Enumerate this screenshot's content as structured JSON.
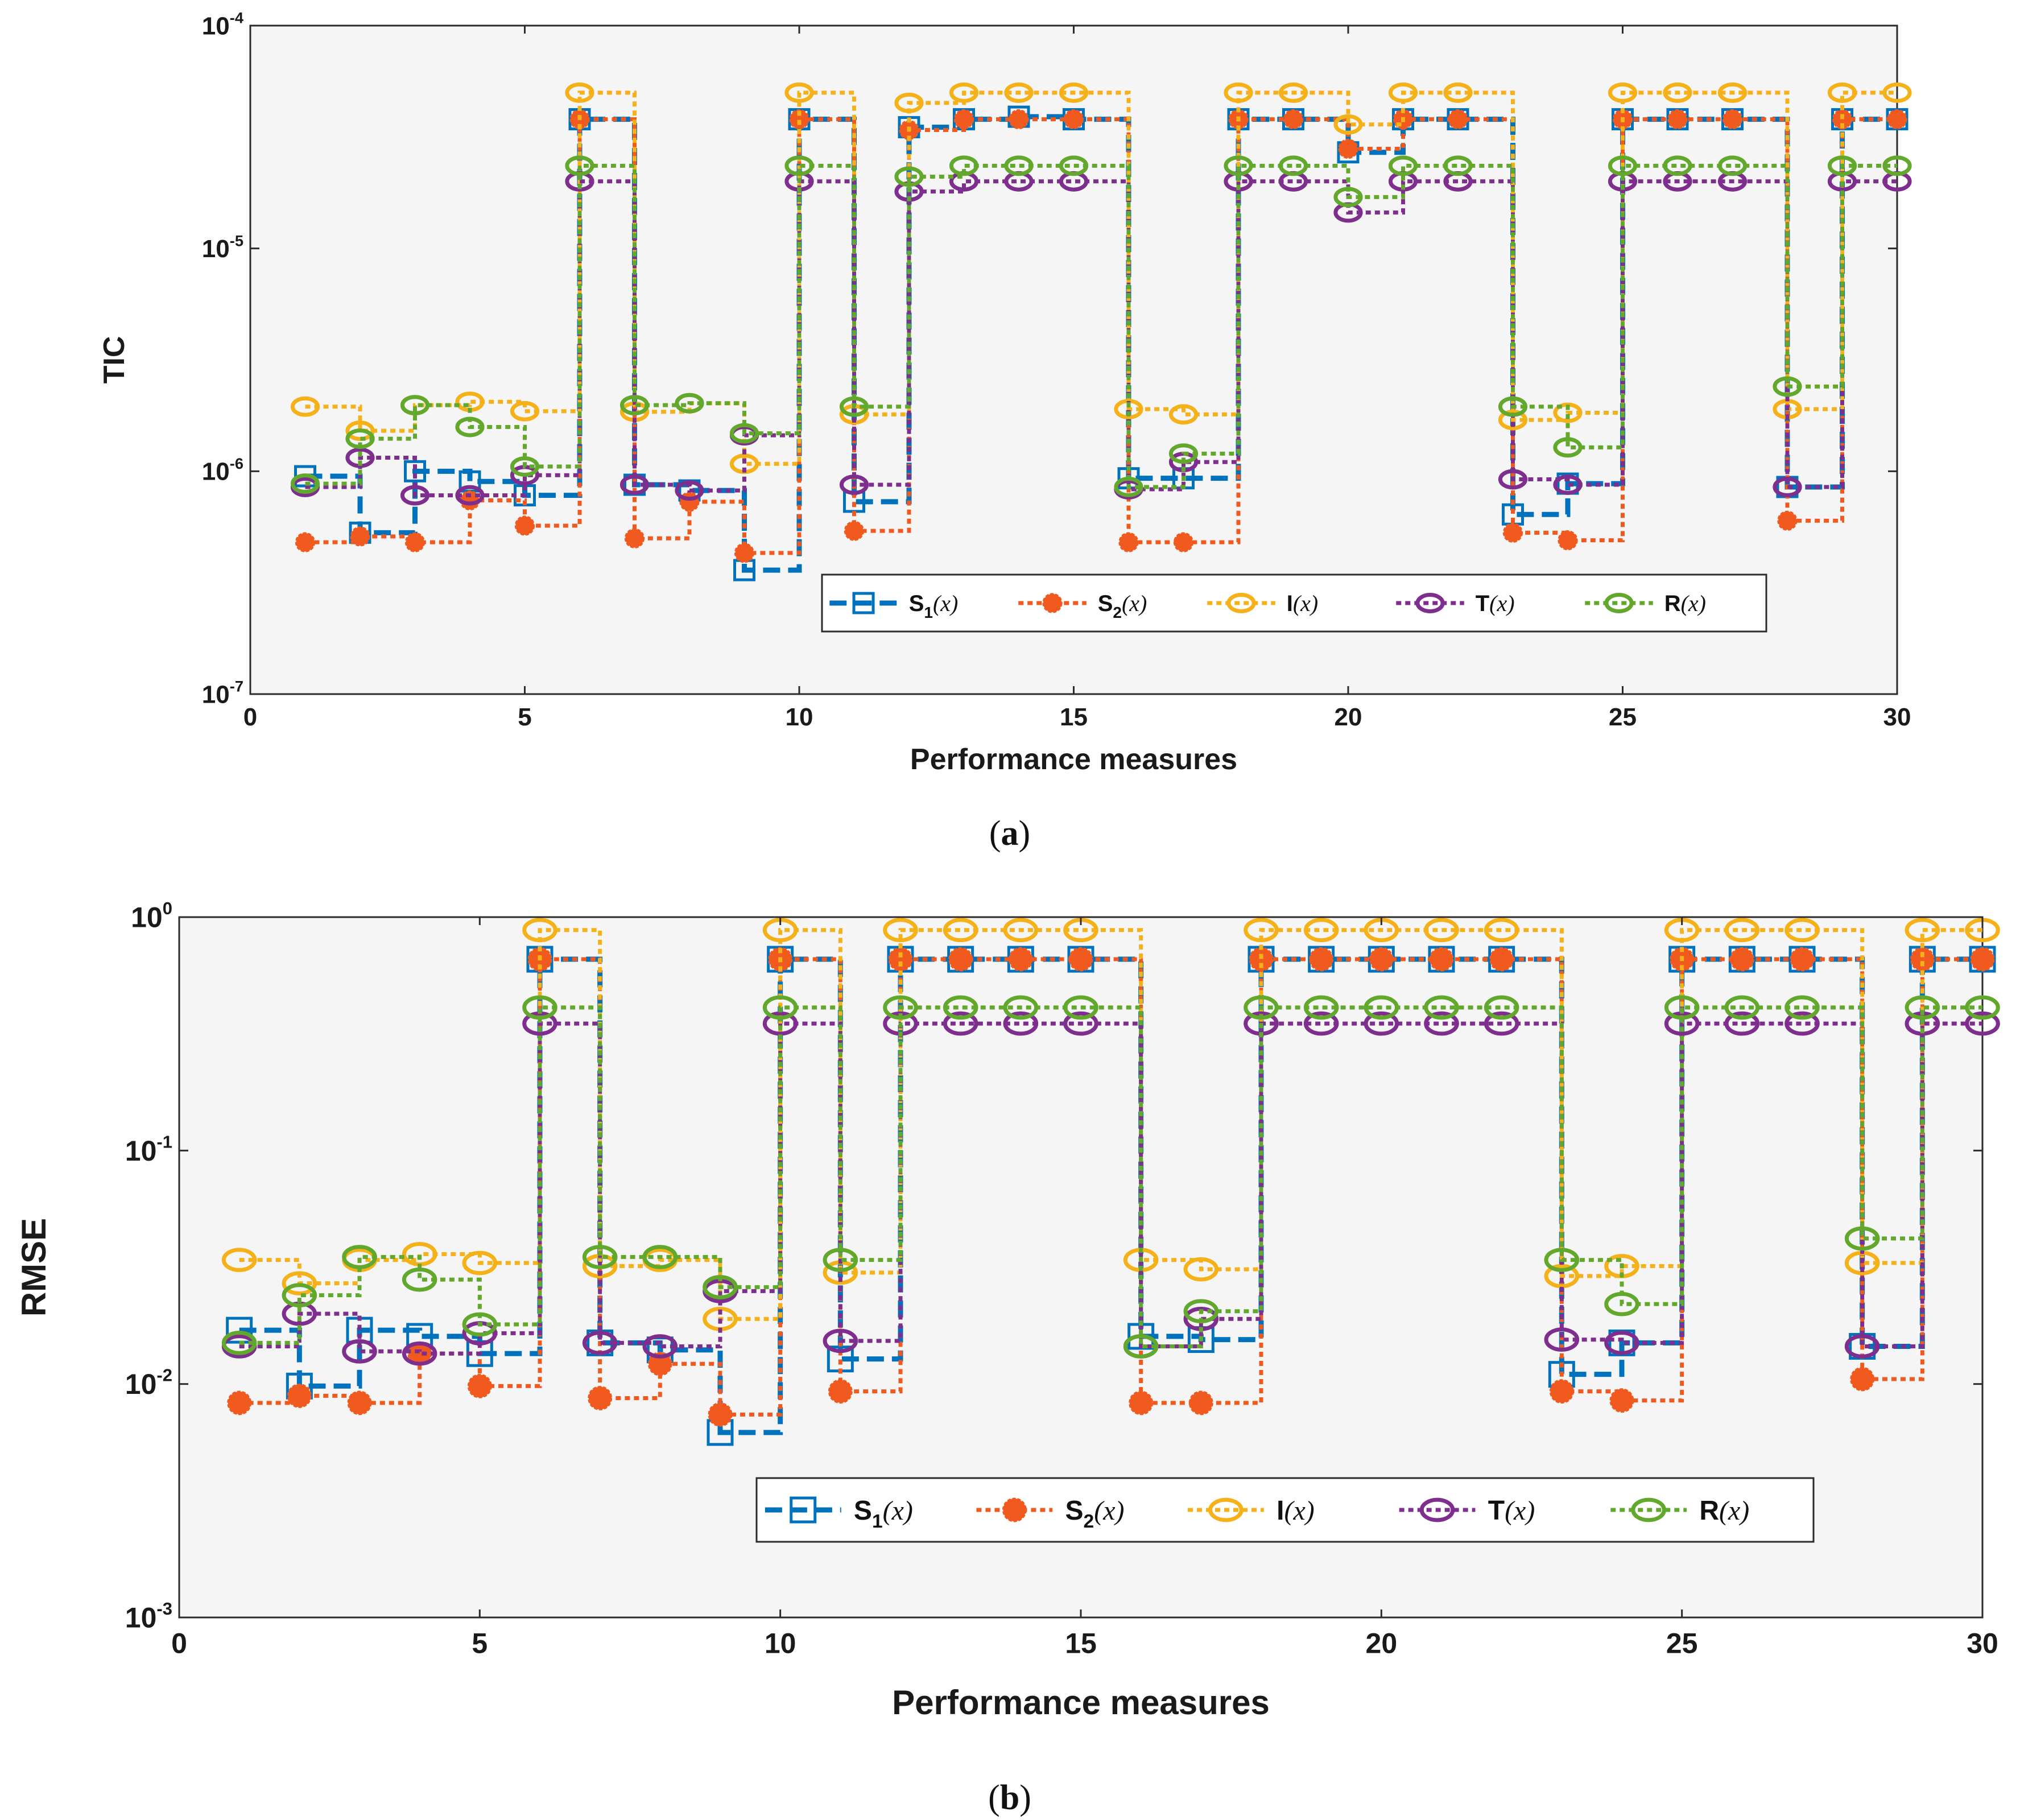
{
  "series_styles": [
    {
      "key": "S1",
      "color": "#0072BD",
      "marker": "square",
      "dash": "dash"
    },
    {
      "key": "S2",
      "color": "#F05A1E",
      "marker": "filled",
      "dash": "dot"
    },
    {
      "key": "I",
      "color": "#F5B119",
      "marker": "circle",
      "dash": "dot"
    },
    {
      "key": "T",
      "color": "#7E2F8E",
      "marker": "circle",
      "dash": "dot"
    },
    {
      "key": "R",
      "color": "#62A82C",
      "marker": "circle",
      "dash": "dot"
    }
  ],
  "chart_data": [
    {
      "type": "line",
      "panel": "a",
      "caption": "a",
      "title": "",
      "xlabel": "Performance measures",
      "ylabel": "TIC",
      "yscale": "log",
      "xlim": [
        0,
        30
      ],
      "ylim_exp": [
        -7,
        -4
      ],
      "xticks": [
        "0",
        "5",
        "10",
        "15",
        "20",
        "25",
        "30"
      ],
      "yticks": [
        {
          "base": "10",
          "exp": "-7"
        },
        {
          "base": "10",
          "exp": "-6"
        },
        {
          "base": "10",
          "exp": "-5"
        },
        {
          "base": "10",
          "exp": "-4"
        }
      ],
      "legend": [
        {
          "name": "S",
          "sub": "1",
          "arg": "(x)"
        },
        {
          "name": "S",
          "sub": "2",
          "arg": "(x)"
        },
        {
          "name": "I",
          "sub": "",
          "arg": "(x)"
        },
        {
          "name": "T",
          "sub": "",
          "arg": "(x)"
        },
        {
          "name": "R",
          "sub": "",
          "arg": "(x)"
        }
      ],
      "legend_position": "lower-right",
      "x": [
        1,
        2,
        3,
        4,
        5,
        6,
        7,
        8,
        9,
        10,
        11,
        12,
        13,
        14,
        15,
        16,
        17,
        18,
        19,
        20,
        21,
        22,
        23,
        24,
        25,
        26,
        27,
        28,
        29,
        30
      ],
      "series": [
        {
          "name": "S1(x)",
          "values": [
            9.5e-07,
            5.3e-07,
            1e-06,
            9e-07,
            7.8e-07,
            3.8e-05,
            8.7e-07,
            8.2e-07,
            3.6e-07,
            3.8e-05,
            7.3e-07,
            3.5e-05,
            3.8e-05,
            3.9e-05,
            3.8e-05,
            9.3e-07,
            9.3e-07,
            3.8e-05,
            3.8e-05,
            2.7e-05,
            3.8e-05,
            3.8e-05,
            6.4e-07,
            8.8e-07,
            3.8e-05,
            3.8e-05,
            3.8e-05,
            8.5e-07,
            3.8e-05,
            3.8e-05
          ]
        },
        {
          "name": "S2(x)",
          "values": [
            4.8e-07,
            5.1e-07,
            4.8e-07,
            7.4e-07,
            5.7e-07,
            3.8e-05,
            5e-07,
            7.3e-07,
            4.3e-07,
            3.8e-05,
            5.4e-07,
            3.4e-05,
            3.8e-05,
            3.8e-05,
            3.8e-05,
            4.8e-07,
            4.8e-07,
            3.8e-05,
            3.8e-05,
            2.8e-05,
            3.8e-05,
            3.8e-05,
            5.3e-07,
            4.9e-07,
            3.8e-05,
            3.8e-05,
            3.8e-05,
            6e-07,
            3.8e-05,
            3.8e-05
          ]
        },
        {
          "name": "I(x)",
          "values": [
            1.95e-06,
            1.52e-06,
            1.98e-06,
            2.05e-06,
            1.86e-06,
            5e-05,
            1.85e-06,
            2.02e-06,
            1.08e-06,
            5e-05,
            1.8e-06,
            4.5e-05,
            5e-05,
            5e-05,
            5e-05,
            1.9e-06,
            1.8e-06,
            5e-05,
            5e-05,
            3.6e-05,
            5e-05,
            5e-05,
            1.7e-06,
            1.83e-06,
            5e-05,
            5e-05,
            5e-05,
            1.9e-06,
            5e-05,
            5e-05
          ]
        },
        {
          "name": "T(x)",
          "values": [
            8.5e-07,
            1.15e-06,
            7.8e-07,
            7.8e-07,
            9.6e-07,
            2e-05,
            8.7e-07,
            8.2e-07,
            1.45e-06,
            2e-05,
            8.7e-07,
            1.8e-05,
            2e-05,
            2e-05,
            2e-05,
            8.3e-07,
            1.1e-06,
            2e-05,
            2e-05,
            1.45e-05,
            2e-05,
            2e-05,
            9.2e-07,
            8.7e-07,
            2e-05,
            2e-05,
            2e-05,
            8.5e-07,
            2e-05,
            2e-05
          ]
        },
        {
          "name": "R(x)",
          "values": [
            8.8e-07,
            1.4e-06,
            1.98e-06,
            1.58e-06,
            1.05e-06,
            2.35e-05,
            1.98e-06,
            2.02e-06,
            1.48e-06,
            2.35e-05,
            1.95e-06,
            2.1e-05,
            2.35e-05,
            2.35e-05,
            2.35e-05,
            8.5e-07,
            1.2e-06,
            2.35e-05,
            2.35e-05,
            1.7e-05,
            2.35e-05,
            2.35e-05,
            1.95e-06,
            1.28e-06,
            2.35e-05,
            2.35e-05,
            2.35e-05,
            2.4e-06,
            2.35e-05,
            2.35e-05
          ]
        }
      ]
    },
    {
      "type": "line",
      "panel": "b",
      "caption": "b",
      "title": "",
      "xlabel": "Performance measures",
      "ylabel": "RMSE",
      "yscale": "log",
      "xlim": [
        0,
        30
      ],
      "ylim_exp": [
        -3,
        0
      ],
      "xticks": [
        "0",
        "5",
        "10",
        "15",
        "20",
        "25",
        "30"
      ],
      "yticks": [
        {
          "base": "10",
          "exp": "-3"
        },
        {
          "base": "10",
          "exp": "-2"
        },
        {
          "base": "10",
          "exp": "-1"
        },
        {
          "base": "10",
          "exp": "0"
        }
      ],
      "legend": [
        {
          "name": "S",
          "sub": "1",
          "arg": "(x)"
        },
        {
          "name": "S",
          "sub": "2",
          "arg": "(x)"
        },
        {
          "name": "I",
          "sub": "",
          "arg": "(x)"
        },
        {
          "name": "T",
          "sub": "",
          "arg": "(x)"
        },
        {
          "name": "R",
          "sub": "",
          "arg": "(x)"
        }
      ],
      "legend_position": "lower-right",
      "x": [
        1,
        2,
        3,
        4,
        5,
        6,
        7,
        8,
        9,
        10,
        11,
        12,
        13,
        14,
        15,
        16,
        17,
        18,
        19,
        20,
        21,
        22,
        23,
        24,
        25,
        26,
        27,
        28,
        29,
        30
      ],
      "series": [
        {
          "name": "S1(x)",
          "values": [
            0.017,
            0.0098,
            0.017,
            0.016,
            0.0135,
            0.66,
            0.015,
            0.014,
            0.0062,
            0.66,
            0.0128,
            0.66,
            0.66,
            0.66,
            0.66,
            0.016,
            0.0155,
            0.66,
            0.66,
            0.66,
            0.66,
            0.66,
            0.011,
            0.015,
            0.66,
            0.66,
            0.66,
            0.0145,
            0.66,
            0.66
          ]
        },
        {
          "name": "S2(x)",
          "values": [
            0.0083,
            0.0089,
            0.0083,
            0.0135,
            0.0098,
            0.66,
            0.0087,
            0.0122,
            0.0074,
            0.66,
            0.0093,
            0.66,
            0.66,
            0.66,
            0.66,
            0.0083,
            0.0083,
            0.66,
            0.66,
            0.66,
            0.66,
            0.66,
            0.0093,
            0.0085,
            0.66,
            0.66,
            0.66,
            0.0105,
            0.66,
            0.66
          ]
        },
        {
          "name": "I(x)",
          "values": [
            0.034,
            0.027,
            0.034,
            0.036,
            0.033,
            0.88,
            0.032,
            0.034,
            0.019,
            0.88,
            0.03,
            0.88,
            0.88,
            0.88,
            0.88,
            0.034,
            0.031,
            0.88,
            0.88,
            0.88,
            0.88,
            0.88,
            0.029,
            0.032,
            0.88,
            0.88,
            0.88,
            0.033,
            0.88,
            0.88
          ]
        },
        {
          "name": "T(x)",
          "values": [
            0.0145,
            0.02,
            0.0138,
            0.0135,
            0.0165,
            0.35,
            0.015,
            0.0145,
            0.025,
            0.35,
            0.0153,
            0.35,
            0.35,
            0.35,
            0.35,
            0.0145,
            0.019,
            0.35,
            0.35,
            0.35,
            0.35,
            0.35,
            0.0155,
            0.015,
            0.35,
            0.35,
            0.35,
            0.0145,
            0.35,
            0.35
          ]
        },
        {
          "name": "R(x)",
          "values": [
            0.015,
            0.024,
            0.035,
            0.028,
            0.018,
            0.41,
            0.035,
            0.035,
            0.026,
            0.41,
            0.034,
            0.41,
            0.41,
            0.41,
            0.41,
            0.0145,
            0.0205,
            0.41,
            0.41,
            0.41,
            0.41,
            0.41,
            0.034,
            0.022,
            0.41,
            0.41,
            0.41,
            0.042,
            0.41,
            0.41
          ]
        }
      ]
    }
  ]
}
